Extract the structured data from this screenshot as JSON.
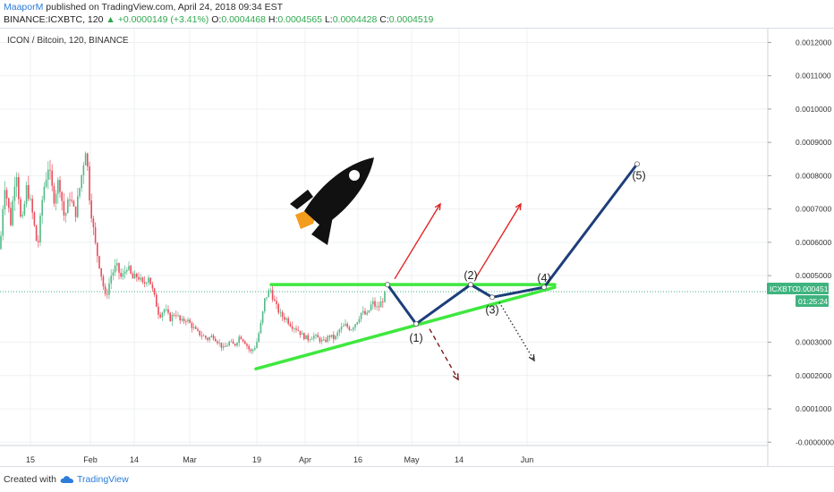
{
  "header": {
    "author": "MaaporM",
    "published": " published on TradingView.com, April 24, 2018 09:34 EST",
    "symbol_line": "BINANCE:ICXBTC, 120",
    "arrow": "▲",
    "change": "+0.0000149 (+3.41%)",
    "o_label": "O:",
    "o_value": "0.0004468",
    "h_label": "H:",
    "h_value": "0.0004565",
    "l_label": "L:",
    "l_value": "0.0004428",
    "c_label": "C:",
    "c_value": "0.0004519",
    "last": "0.0004519"
  },
  "footer": {
    "created_with": "Created with",
    "brand": "TradingView"
  },
  "colors": {
    "up": "#53b987",
    "down": "#eb4d5c",
    "support": "#3ee83e",
    "resistance": "#3ee83e",
    "path": "#1d3e7a",
    "target_arrow": "#e02424",
    "alt_arrow": "#7a1a1a",
    "price_tag": "#3fb37f",
    "grid": "#eef0f3"
  },
  "chart_data": {
    "type": "candlestick",
    "pane_title": "ICON / Bitcoin, 120, BINANCE",
    "x_ticks": [
      "15",
      "Feb",
      "14",
      "Mar",
      "19",
      "Apr",
      "16",
      "May",
      "14",
      "Jun"
    ],
    "y_ticks": [
      "0.0012000",
      "0.0011000",
      "0.0010000",
      "0.0009000",
      "0.0008000",
      "0.0007000",
      "0.0006000",
      "0.0005000",
      "0.0003000",
      "0.0002000",
      "0.0001000",
      "-0.0000000"
    ],
    "ylim": [
      -1e-05,
      0.00122
    ],
    "last_price_label": "ICXBTC",
    "last_price": "0.0004519",
    "countdown": "01:25:24",
    "price_path": [
      {
        "x": 0,
        "y": 0.00058
      },
      {
        "x": 5,
        "y": 0.00078
      },
      {
        "x": 12,
        "y": 0.00066
      },
      {
        "x": 18,
        "y": 0.00083
      },
      {
        "x": 24,
        "y": 0.00064
      },
      {
        "x": 30,
        "y": 0.00077
      },
      {
        "x": 36,
        "y": 0.00069
      },
      {
        "x": 42,
        "y": 0.00058
      },
      {
        "x": 48,
        "y": 0.00075
      },
      {
        "x": 54,
        "y": 0.00083
      },
      {
        "x": 60,
        "y": 0.00073
      },
      {
        "x": 66,
        "y": 0.00079
      },
      {
        "x": 72,
        "y": 0.00067
      },
      {
        "x": 78,
        "y": 0.00074
      },
      {
        "x": 84,
        "y": 0.00068
      },
      {
        "x": 90,
        "y": 0.00078
      },
      {
        "x": 96,
        "y": 0.00089
      },
      {
        "x": 100,
        "y": 0.00074
      },
      {
        "x": 106,
        "y": 0.0006
      },
      {
        "x": 112,
        "y": 0.00052
      },
      {
        "x": 118,
        "y": 0.00043
      },
      {
        "x": 124,
        "y": 0.0005
      },
      {
        "x": 130,
        "y": 0.00053
      },
      {
        "x": 136,
        "y": 0.00049
      },
      {
        "x": 142,
        "y": 0.00053
      },
      {
        "x": 148,
        "y": 0.00049
      },
      {
        "x": 154,
        "y": 0.0005
      },
      {
        "x": 160,
        "y": 0.00047
      },
      {
        "x": 166,
        "y": 0.0005
      },
      {
        "x": 172,
        "y": 0.00044
      },
      {
        "x": 178,
        "y": 0.00038
      },
      {
        "x": 184,
        "y": 0.0004
      },
      {
        "x": 190,
        "y": 0.00037
      },
      {
        "x": 196,
        "y": 0.00039
      },
      {
        "x": 202,
        "y": 0.00036
      },
      {
        "x": 208,
        "y": 0.00037
      },
      {
        "x": 214,
        "y": 0.00035
      },
      {
        "x": 220,
        "y": 0.00033
      },
      {
        "x": 226,
        "y": 0.00032
      },
      {
        "x": 232,
        "y": 0.00031
      },
      {
        "x": 238,
        "y": 0.00032
      },
      {
        "x": 244,
        "y": 0.0003
      },
      {
        "x": 250,
        "y": 0.00028
      },
      {
        "x": 256,
        "y": 0.0003
      },
      {
        "x": 262,
        "y": 0.00029
      },
      {
        "x": 268,
        "y": 0.00032
      },
      {
        "x": 274,
        "y": 0.0003
      },
      {
        "x": 280,
        "y": 0.00027
      },
      {
        "x": 286,
        "y": 0.00029
      },
      {
        "x": 292,
        "y": 0.00036
      },
      {
        "x": 296,
        "y": 0.00043
      },
      {
        "x": 302,
        "y": 0.00046
      },
      {
        "x": 308,
        "y": 0.00041
      },
      {
        "x": 314,
        "y": 0.00038
      },
      {
        "x": 320,
        "y": 0.00037
      },
      {
        "x": 326,
        "y": 0.00035
      },
      {
        "x": 332,
        "y": 0.00034
      },
      {
        "x": 338,
        "y": 0.00032
      },
      {
        "x": 344,
        "y": 0.00031
      },
      {
        "x": 350,
        "y": 0.00032
      },
      {
        "x": 356,
        "y": 0.00031
      },
      {
        "x": 362,
        "y": 0.0003
      },
      {
        "x": 368,
        "y": 0.00032
      },
      {
        "x": 374,
        "y": 0.00031
      },
      {
        "x": 380,
        "y": 0.00034
      },
      {
        "x": 386,
        "y": 0.00035
      },
      {
        "x": 392,
        "y": 0.00034
      },
      {
        "x": 398,
        "y": 0.00036
      },
      {
        "x": 404,
        "y": 0.00039
      },
      {
        "x": 410,
        "y": 0.00038
      },
      {
        "x": 416,
        "y": 0.00042
      },
      {
        "x": 422,
        "y": 0.0004
      },
      {
        "x": 428,
        "y": 0.00043
      },
      {
        "x": 432,
        "y": 0.00045
      }
    ],
    "support_line": [
      {
        "x": 286,
        "y": 0.00022
      },
      {
        "x": 620,
        "y": 0.000465
      }
    ],
    "resistance_line": [
      {
        "x": 303,
        "y": 0.000473
      },
      {
        "x": 620,
        "y": 0.000473
      }
    ],
    "projection": [
      {
        "label": "",
        "x": 433,
        "y": 0.000473
      },
      {
        "label": "(1)",
        "x": 465,
        "y": 0.000355
      },
      {
        "label": "(2)",
        "x": 526,
        "y": 0.000473
      },
      {
        "label": "(3)",
        "x": 550,
        "y": 0.000435
      },
      {
        "label": "(4)",
        "x": 608,
        "y": 0.000465
      },
      {
        "label": "(5)",
        "x": 712,
        "y": 0.000835
      }
    ],
    "target_arrows": [
      {
        "from": {
          "x": 441,
          "y": 0.00049
        },
        "to": {
          "x": 492,
          "y": 0.000715
        }
      },
      {
        "from": {
          "x": 531,
          "y": 0.00049
        },
        "to": {
          "x": 582,
          "y": 0.000715
        }
      }
    ],
    "fail_arrows": [
      {
        "from": {
          "x": 480,
          "y": 0.00034
        },
        "to": {
          "x": 512,
          "y": 0.000188
        },
        "style": "dashed"
      },
      {
        "from": {
          "x": 558,
          "y": 0.00042
        },
        "to": {
          "x": 597,
          "y": 0.000245
        },
        "style": "dotted"
      }
    ]
  }
}
